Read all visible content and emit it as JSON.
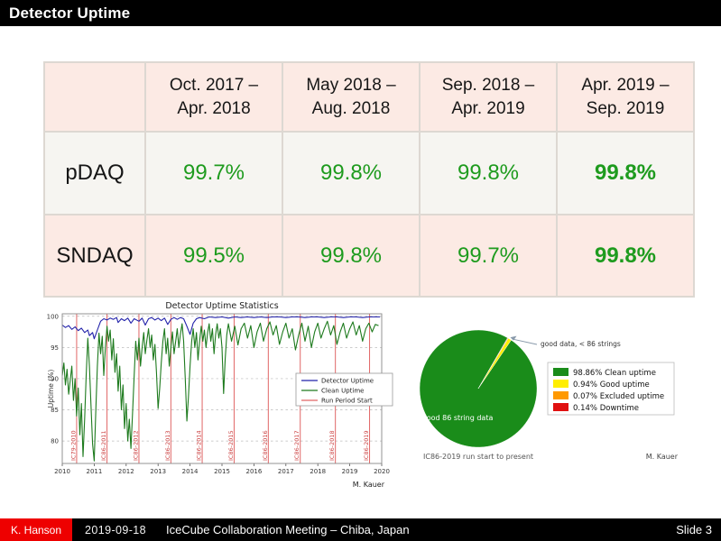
{
  "slide": {
    "title": "Detector Uptime",
    "footer": {
      "author": "K. Hanson",
      "date": "2019-09-18",
      "meeting": "IceCube Collaboration Meeting – Chiba, Japan",
      "slide_number": "Slide 3"
    }
  },
  "table": {
    "col_headers": [
      "Oct. 2017 –\nApr. 2018",
      "May 2018 –\nAug. 2018",
      "Sep. 2018 –\nApr. 2019",
      "Apr. 2019 –\nSep. 2019"
    ],
    "rows": [
      {
        "label": "pDAQ",
        "values": [
          "99.7%",
          "99.8%",
          "99.8%",
          "99.8%"
        ]
      },
      {
        "label": "SNDAQ",
        "values": [
          "99.5%",
          "99.8%",
          "99.7%",
          "99.8%"
        ]
      }
    ]
  },
  "colors": {
    "value_green": "#1e9b1e",
    "table_pink": "#fceae4",
    "table_offwhite": "#f6f5f1",
    "footer_red": "#ee0000",
    "bar_black": "#000000"
  },
  "chart_data": [
    {
      "type": "line",
      "title": "Detector Uptime Statistics",
      "xlabel": "",
      "ylabel": "Uptime (%)",
      "xlim": [
        2010,
        2020
      ],
      "ylim": [
        76.4,
        100.4
      ],
      "xticks": [
        2010,
        2011,
        2012,
        2013,
        2014,
        2015,
        2016,
        2017,
        2018,
        2019,
        2020
      ],
      "yticks": [
        80,
        85,
        90,
        95,
        100
      ],
      "grid": true,
      "legend_position": "center right",
      "credit": "M. Kauer",
      "series": [
        {
          "name": "Detector Uptime",
          "color": "#2222aa",
          "points": [
            [
              2010.0,
              98.6
            ],
            [
              2010.1,
              98.2
            ],
            [
              2010.2,
              98.5
            ],
            [
              2010.3,
              97.9
            ],
            [
              2010.4,
              98.3
            ],
            [
              2010.5,
              97.7
            ],
            [
              2010.6,
              98.1
            ],
            [
              2010.7,
              97.4
            ],
            [
              2010.8,
              97.8
            ],
            [
              2010.85,
              96.9
            ],
            [
              2010.95,
              97.4
            ],
            [
              2011.0,
              96.4
            ],
            [
              2011.1,
              97.8
            ],
            [
              2011.2,
              99.2
            ],
            [
              2011.3,
              99.6
            ],
            [
              2011.4,
              99.4
            ],
            [
              2011.5,
              99.7
            ],
            [
              2011.6,
              99.5
            ],
            [
              2011.7,
              99.8
            ],
            [
              2011.75,
              99.0
            ],
            [
              2011.85,
              99.6
            ],
            [
              2011.95,
              99.3
            ],
            [
              2012.05,
              99.7
            ],
            [
              2012.15,
              98.9
            ],
            [
              2012.25,
              99.6
            ],
            [
              2012.4,
              99.2
            ],
            [
              2012.5,
              99.7
            ],
            [
              2012.6,
              98.6
            ],
            [
              2012.7,
              99.6
            ],
            [
              2012.8,
              99.8
            ],
            [
              2012.9,
              99.4
            ],
            [
              2013.0,
              99.7
            ],
            [
              2013.1,
              99.3
            ],
            [
              2013.2,
              99.7
            ],
            [
              2013.3,
              98.7
            ],
            [
              2013.4,
              99.5
            ],
            [
              2013.5,
              99.8
            ],
            [
              2013.6,
              99.5
            ],
            [
              2013.7,
              99.8
            ],
            [
              2013.8,
              99.6
            ],
            [
              2013.9,
              98.4
            ],
            [
              2014.0,
              97.1
            ],
            [
              2014.1,
              98.9
            ],
            [
              2014.2,
              99.6
            ],
            [
              2014.3,
              99.8
            ],
            [
              2014.45,
              99.6
            ],
            [
              2014.6,
              99.9
            ],
            [
              2014.8,
              99.8
            ],
            [
              2015.0,
              99.9
            ],
            [
              2015.2,
              99.7
            ],
            [
              2015.4,
              99.9
            ],
            [
              2015.6,
              99.8
            ],
            [
              2015.8,
              99.9
            ],
            [
              2016.0,
              99.8
            ],
            [
              2016.2,
              99.9
            ],
            [
              2016.4,
              99.8
            ],
            [
              2016.6,
              99.9
            ],
            [
              2016.8,
              99.9
            ],
            [
              2017.0,
              99.8
            ],
            [
              2017.2,
              99.9
            ],
            [
              2017.4,
              99.9
            ],
            [
              2017.6,
              99.8
            ],
            [
              2017.8,
              99.9
            ],
            [
              2018.0,
              99.9
            ],
            [
              2018.2,
              99.8
            ],
            [
              2018.4,
              99.9
            ],
            [
              2018.6,
              99.9
            ],
            [
              2018.8,
              99.8
            ],
            [
              2019.0,
              99.9
            ],
            [
              2019.2,
              99.9
            ],
            [
              2019.4,
              99.8
            ],
            [
              2019.6,
              99.9
            ],
            [
              2019.8,
              99.9
            ],
            [
              2019.95,
              99.9
            ]
          ]
        },
        {
          "name": "Clean Uptime",
          "color": "#1d7a1d",
          "points": [
            [
              2010.0,
              90.5
            ],
            [
              2010.05,
              92.5
            ],
            [
              2010.1,
              89.0
            ],
            [
              2010.15,
              91.5
            ],
            [
              2010.2,
              87.5
            ],
            [
              2010.3,
              92.0
            ],
            [
              2010.35,
              86.5
            ],
            [
              2010.4,
              90.0
            ],
            [
              2010.45,
              84.0
            ],
            [
              2010.5,
              88.5
            ],
            [
              2010.55,
              81.0
            ],
            [
              2010.6,
              86.0
            ],
            [
              2010.65,
              77.5
            ],
            [
              2010.7,
              83.5
            ],
            [
              2010.75,
              90.5
            ],
            [
              2010.8,
              96.5
            ],
            [
              2010.85,
              92.0
            ],
            [
              2010.9,
              85.5
            ],
            [
              2010.95,
              79.5
            ],
            [
              2011.0,
              76.8
            ],
            [
              2011.05,
              85.0
            ],
            [
              2011.1,
              92.0
            ],
            [
              2011.15,
              97.3
            ],
            [
              2011.2,
              94.0
            ],
            [
              2011.25,
              96.8
            ],
            [
              2011.3,
              90.5
            ],
            [
              2011.35,
              95.0
            ],
            [
              2011.4,
              98.4
            ],
            [
              2011.45,
              96.0
            ],
            [
              2011.5,
              97.8
            ],
            [
              2011.55,
              93.0
            ],
            [
              2011.6,
              96.4
            ],
            [
              2011.65,
              91.0
            ],
            [
              2011.7,
              94.0
            ],
            [
              2011.75,
              88.0
            ],
            [
              2011.8,
              92.0
            ],
            [
              2011.85,
              85.0
            ],
            [
              2011.9,
              89.0
            ],
            [
              2011.95,
              82.0
            ],
            [
              2012.0,
              86.0
            ],
            [
              2012.05,
              80.0
            ],
            [
              2012.1,
              83.5
            ],
            [
              2012.15,
              78.8
            ],
            [
              2012.2,
              84.5
            ],
            [
              2012.25,
              90.5
            ],
            [
              2012.3,
              96.0
            ],
            [
              2012.35,
              93.0
            ],
            [
              2012.4,
              96.5
            ],
            [
              2012.45,
              92.0
            ],
            [
              2012.5,
              95.0
            ],
            [
              2012.55,
              97.4
            ],
            [
              2012.6,
              94.0
            ],
            [
              2012.65,
              96.2
            ],
            [
              2012.7,
              98.0
            ],
            [
              2012.75,
              95.0
            ],
            [
              2012.8,
              97.0
            ],
            [
              2012.85,
              93.0
            ],
            [
              2012.9,
              95.5
            ],
            [
              2012.95,
              91.0
            ],
            [
              2013.0,
              85.2
            ],
            [
              2013.05,
              88.5
            ],
            [
              2013.1,
              92.5
            ],
            [
              2013.15,
              96.0
            ],
            [
              2013.2,
              98.0
            ],
            [
              2013.25,
              94.0
            ],
            [
              2013.3,
              96.5
            ],
            [
              2013.35,
              92.0
            ],
            [
              2013.4,
              95.0
            ],
            [
              2013.45,
              97.5
            ],
            [
              2013.5,
              94.0
            ],
            [
              2013.55,
              96.0
            ],
            [
              2013.6,
              98.0
            ],
            [
              2013.65,
              95.0
            ],
            [
              2013.7,
              97.2
            ],
            [
              2013.75,
              98.8
            ],
            [
              2013.8,
              96.0
            ],
            [
              2013.85,
              90.0
            ],
            [
              2013.9,
              83.2
            ],
            [
              2013.95,
              87.0
            ],
            [
              2014.0,
              92.0
            ],
            [
              2014.05,
              96.0
            ],
            [
              2014.1,
              98.0
            ],
            [
              2014.15,
              95.0
            ],
            [
              2014.2,
              97.4
            ],
            [
              2014.25,
              93.0
            ],
            [
              2014.3,
              96.0
            ],
            [
              2014.35,
              98.4
            ],
            [
              2014.4,
              96.0
            ],
            [
              2014.45,
              97.8
            ],
            [
              2014.5,
              95.0
            ],
            [
              2014.55,
              97.4
            ],
            [
              2014.6,
              98.8
            ],
            [
              2014.65,
              96.0
            ],
            [
              2014.7,
              98.0
            ],
            [
              2014.75,
              94.0
            ],
            [
              2014.8,
              97.0
            ],
            [
              2014.85,
              98.8
            ],
            [
              2014.9,
              96.5
            ],
            [
              2014.95,
              98.0
            ],
            [
              2015.0,
              95.0
            ],
            [
              2015.05,
              87.6
            ],
            [
              2015.1,
              93.0
            ],
            [
              2015.15,
              97.0
            ],
            [
              2015.2,
              98.8
            ],
            [
              2015.3,
              96.0
            ],
            [
              2015.4,
              98.4
            ],
            [
              2015.5,
              95.4
            ],
            [
              2015.6,
              98.0
            ],
            [
              2015.7,
              98.9
            ],
            [
              2015.8,
              96.5
            ],
            [
              2015.9,
              98.5
            ],
            [
              2016.0,
              95.0
            ],
            [
              2016.1,
              97.5
            ],
            [
              2016.2,
              98.9
            ],
            [
              2016.3,
              96.0
            ],
            [
              2016.4,
              98.0
            ],
            [
              2016.5,
              99.1
            ],
            [
              2016.6,
              97.0
            ],
            [
              2016.7,
              98.5
            ],
            [
              2016.8,
              95.5
            ],
            [
              2016.9,
              97.5
            ],
            [
              2017.0,
              98.9
            ],
            [
              2017.1,
              96.5
            ],
            [
              2017.2,
              98.0
            ],
            [
              2017.3,
              94.6
            ],
            [
              2017.4,
              97.0
            ],
            [
              2017.5,
              98.9
            ],
            [
              2017.6,
              96.0
            ],
            [
              2017.7,
              98.4
            ],
            [
              2017.8,
              95.0
            ],
            [
              2017.9,
              97.5
            ],
            [
              2018.0,
              98.9
            ],
            [
              2018.1,
              96.5
            ],
            [
              2018.2,
              98.0
            ],
            [
              2018.3,
              99.2
            ],
            [
              2018.4,
              97.0
            ],
            [
              2018.5,
              98.5
            ],
            [
              2018.6,
              95.5
            ],
            [
              2018.7,
              97.5
            ],
            [
              2018.8,
              98.9
            ],
            [
              2018.9,
              96.5
            ],
            [
              2019.0,
              98.0
            ],
            [
              2019.1,
              99.1
            ],
            [
              2019.2,
              97.0
            ],
            [
              2019.3,
              98.5
            ],
            [
              2019.4,
              96.0
            ],
            [
              2019.5,
              98.0
            ],
            [
              2019.6,
              98.9
            ],
            [
              2019.7,
              97.5
            ],
            [
              2019.8,
              98.7
            ],
            [
              2019.9,
              98.5
            ]
          ]
        }
      ],
      "run_period_starts": {
        "name": "Run Period Start",
        "color": "#e06666",
        "items": [
          {
            "label": "IC79-2010",
            "x": 2010.45
          },
          {
            "label": "IC86-2011",
            "x": 2011.4
          },
          {
            "label": "IC86-2012",
            "x": 2012.4
          },
          {
            "label": "IC86-2013",
            "x": 2013.4
          },
          {
            "label": "IC86-2014",
            "x": 2014.38
          },
          {
            "label": "IC86-2015",
            "x": 2015.38
          },
          {
            "label": "IC86-2016",
            "x": 2016.45
          },
          {
            "label": "IC86-2017",
            "x": 2017.45
          },
          {
            "label": "IC86-2018",
            "x": 2018.55
          },
          {
            "label": "IC86-2019",
            "x": 2019.62
          }
        ]
      },
      "legend": [
        "Detector Uptime",
        "Clean Uptime",
        "Run Period Start"
      ]
    },
    {
      "type": "pie",
      "start_angle": 60,
      "slices": [
        {
          "label": "98.86% Clean uptime",
          "value": 98.86,
          "color": "#1a8c1a"
        },
        {
          "label": "0.94% Good uptime",
          "value": 0.94,
          "color": "#ffee00"
        },
        {
          "label": "0.07% Excluded uptime",
          "value": 0.07,
          "color": "#ff9900"
        },
        {
          "label": "0.14% Downtime",
          "value": 0.14,
          "color": "#e01010"
        }
      ],
      "inner_label": "good 86 string data",
      "annotation": "good data, < 86 strings",
      "caption": "IC86-2019 run start to present",
      "credit": "M. Kauer",
      "legend_position": "right"
    }
  ]
}
